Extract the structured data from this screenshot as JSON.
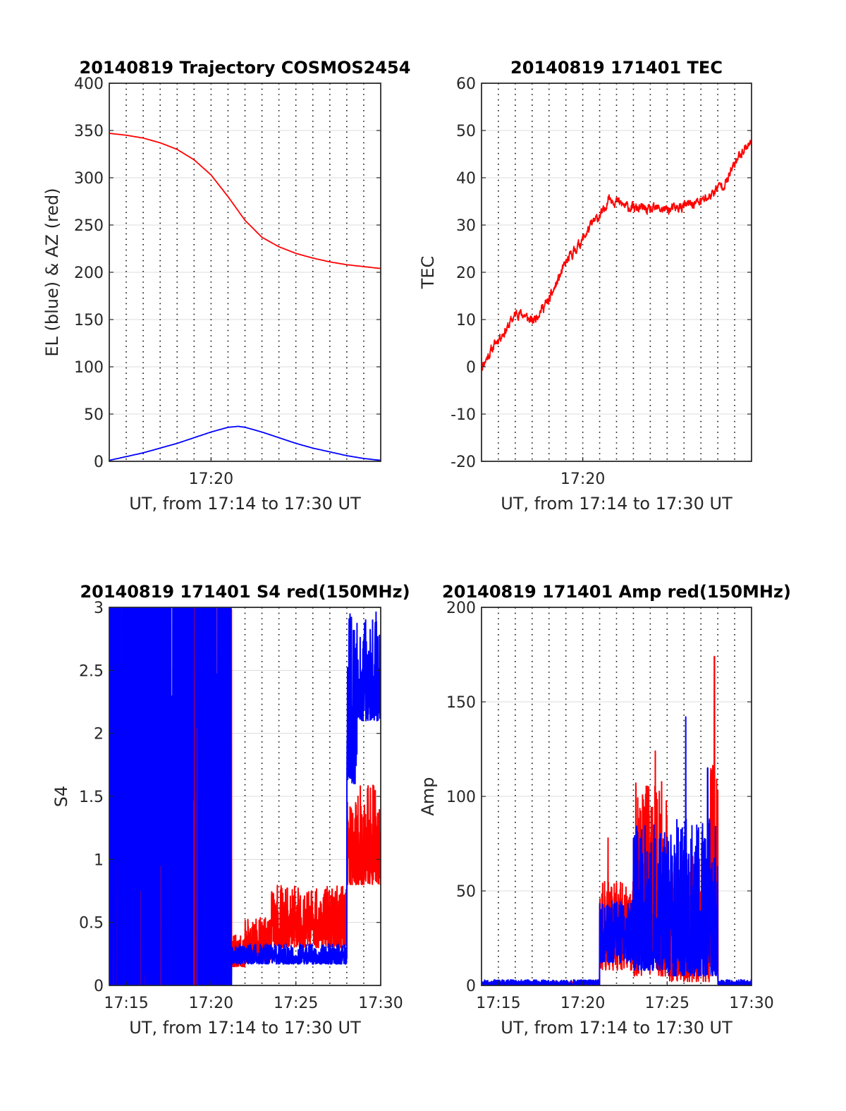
{
  "colors": {
    "red": "#ff0000",
    "blue": "#0000ff",
    "grid": "#dcdcdc",
    "axis": "#262626"
  },
  "chart_data": [
    {
      "type": "line",
      "title": "20140819 Trajectory COSMOS2454",
      "xlabel": "UT, from 17:14 to 17:30 UT",
      "ylabel": "EL (blue) & AZ (red)",
      "xlim": [
        14.0,
        30.0
      ],
      "ylim": [
        0,
        400
      ],
      "yticks": [
        0,
        50,
        100,
        150,
        200,
        250,
        300,
        350,
        400
      ],
      "xticks": [
        {
          "v": 20,
          "label": "17:20"
        }
      ],
      "x_minor_grid": [
        15,
        16,
        17,
        18,
        19,
        20,
        21,
        22,
        23,
        24,
        25,
        26,
        27,
        28,
        29
      ],
      "grid": true,
      "series": [
        {
          "color": "blue",
          "style": "smooth",
          "x": [
            14.0,
            15.0,
            16.0,
            17.0,
            18.0,
            19.0,
            20.0,
            21.0,
            21.6,
            22.0,
            23.0,
            24.0,
            25.0,
            26.0,
            27.0,
            28.0,
            29.0,
            30.0
          ],
          "values": [
            1,
            5,
            9,
            14,
            19,
            25,
            31,
            36,
            37,
            36,
            31,
            25,
            19,
            14,
            10,
            6,
            3,
            1
          ]
        },
        {
          "color": "red",
          "style": "smooth",
          "x": [
            14.0,
            15.0,
            16.0,
            17.0,
            18.0,
            19.0,
            20.0,
            21.0,
            22.0,
            23.0,
            24.0,
            25.0,
            26.0,
            27.0,
            28.0,
            29.0,
            30.0
          ],
          "values": [
            347,
            345,
            342,
            337,
            330,
            319,
            303,
            280,
            255,
            237,
            227,
            220,
            215,
            211,
            208,
            206,
            204
          ]
        }
      ]
    },
    {
      "type": "line",
      "title": "20140819 171401 TEC",
      "xlabel": "UT, from 17:14 to 17:30 UT",
      "ylabel": "TEC",
      "xlim": [
        14.0,
        30.0
      ],
      "ylim": [
        -20,
        60
      ],
      "yticks": [
        -20,
        -10,
        0,
        10,
        20,
        30,
        40,
        50,
        60
      ],
      "xticks": [
        {
          "v": 20,
          "label": "17:20"
        }
      ],
      "x_minor_grid": [
        15,
        16,
        17,
        18,
        19,
        20,
        21,
        22,
        23,
        24,
        25,
        26,
        27,
        28,
        29
      ],
      "grid": true,
      "series": [
        {
          "color": "red",
          "style": "noisy",
          "noise": 0.8,
          "seed": 11,
          "x": [
            14.0,
            14.5,
            15.0,
            15.5,
            15.8,
            16.1,
            16.5,
            17.0,
            17.5,
            18.0,
            18.5,
            19.0,
            19.5,
            20.0,
            20.5,
            21.0,
            21.3,
            21.5,
            22.0,
            22.5,
            23.0,
            23.5,
            24.0,
            24.5,
            25.0,
            25.5,
            26.0,
            26.5,
            27.0,
            27.5,
            28.0,
            28.5,
            29.0,
            29.5,
            30.0
          ],
          "values": [
            0,
            3,
            6,
            8,
            10,
            11.5,
            11,
            9.5,
            12,
            14,
            18,
            22,
            24.5,
            27,
            30,
            32,
            33,
            36,
            35,
            34,
            33.5,
            33.5,
            33,
            33.5,
            33.2,
            33.5,
            34,
            34.5,
            35,
            36,
            38,
            39,
            43,
            46,
            47.5
          ]
        }
      ]
    },
    {
      "type": "line",
      "title": "20140819 171401 S4 red(150MHz)",
      "xlabel": "UT, from 17:14 to 17:30 UT",
      "ylabel": "S4",
      "xlim": [
        14.0,
        30.0
      ],
      "ylim": [
        0,
        3
      ],
      "yticks": [
        0,
        0.5,
        1,
        1.5,
        2,
        2.5,
        3
      ],
      "xticks": [
        {
          "v": 15,
          "label": "17:15"
        },
        {
          "v": 20,
          "label": "17:20"
        },
        {
          "v": 25,
          "label": "17:25"
        },
        {
          "v": 30,
          "label": "17:30"
        }
      ],
      "x_minor_grid": [
        15,
        16,
        17,
        18,
        19,
        20,
        21,
        22,
        23,
        24,
        25,
        26,
        27,
        28,
        29
      ],
      "grid": true,
      "series": [
        {
          "color": "red",
          "style": "spiky",
          "seed": 23,
          "segments": [
            {
              "x0": 14.0,
              "x1": 17.6,
              "mode": "sat",
              "lo": 0.0,
              "hi": 3.0
            },
            {
              "x0": 17.6,
              "x1": 18.6,
              "mode": "band",
              "lo": 0.7,
              "hi": 1.8
            },
            {
              "x0": 18.6,
              "x1": 21.2,
              "mode": "sat",
              "lo": 0.0,
              "hi": 3.0
            },
            {
              "x0": 21.2,
              "x1": 22.0,
              "mode": "band",
              "lo": 0.15,
              "hi": 0.4
            },
            {
              "x0": 22.0,
              "x1": 23.5,
              "mode": "band",
              "lo": 0.18,
              "hi": 0.55
            },
            {
              "x0": 23.5,
              "x1": 28.0,
              "mode": "band",
              "lo": 0.3,
              "hi": 0.8
            },
            {
              "x0": 28.0,
              "x1": 30.0,
              "mode": "band",
              "lo": 0.8,
              "hi": 1.6
            }
          ]
        },
        {
          "color": "blue",
          "style": "spiky",
          "seed": 37,
          "segments": [
            {
              "x0": 14.0,
              "x1": 21.2,
              "mode": "sat",
              "lo": 0.0,
              "hi": 3.0
            },
            {
              "x0": 21.2,
              "x1": 28.0,
              "mode": "band",
              "lo": 0.17,
              "hi": 0.33
            },
            {
              "x0": 28.0,
              "x1": 28.6,
              "mode": "band",
              "lo": 1.6,
              "hi": 3.0
            },
            {
              "x0": 28.6,
              "x1": 30.0,
              "mode": "band",
              "lo": 2.1,
              "hi": 3.0
            }
          ]
        }
      ]
    },
    {
      "type": "line",
      "title": "20140819 171401 Amp red(150MHz)",
      "xlabel": "UT, from 17:14 to 17:30 UT",
      "ylabel": "Amp",
      "xlim": [
        14.0,
        30.0
      ],
      "ylim": [
        0,
        200
      ],
      "yticks": [
        0,
        50,
        100,
        150,
        200
      ],
      "xticks": [
        {
          "v": 15,
          "label": "17:15"
        },
        {
          "v": 20,
          "label": "17:20"
        },
        {
          "v": 25,
          "label": "17:25"
        },
        {
          "v": 30,
          "label": "17:30"
        }
      ],
      "x_minor_grid": [
        15,
        16,
        17,
        18,
        19,
        20,
        21,
        22,
        23,
        24,
        25,
        26,
        27,
        28,
        29
      ],
      "grid": true,
      "series": [
        {
          "color": "red",
          "style": "spiky",
          "seed": 51,
          "segments": [
            {
              "x0": 14.0,
              "x1": 21.0,
              "mode": "band",
              "lo": 0,
              "hi": 2
            },
            {
              "x0": 21.0,
              "x1": 23.0,
              "mode": "band",
              "lo": 8,
              "hi": 55
            },
            {
              "x0": 23.0,
              "x1": 25.0,
              "mode": "band",
              "lo": 5,
              "hi": 110
            },
            {
              "x0": 25.0,
              "x1": 27.5,
              "mode": "band",
              "lo": 2,
              "hi": 70
            },
            {
              "x0": 27.5,
              "x1": 28.0,
              "mode": "band",
              "lo": 5,
              "hi": 120
            },
            {
              "x0": 28.0,
              "x1": 30.0,
              "mode": "band",
              "lo": 0,
              "hi": 2
            }
          ],
          "peaks": [
            {
              "x": 21.5,
              "v": 78
            },
            {
              "x": 24.3,
              "v": 124
            },
            {
              "x": 27.8,
              "v": 174
            }
          ]
        },
        {
          "color": "blue",
          "style": "spiky",
          "seed": 67,
          "segments": [
            {
              "x0": 14.0,
              "x1": 21.0,
              "mode": "band",
              "lo": 0,
              "hi": 3
            },
            {
              "x0": 21.0,
              "x1": 23.0,
              "mode": "band",
              "lo": 12,
              "hi": 45
            },
            {
              "x0": 23.0,
              "x1": 25.0,
              "mode": "band",
              "lo": 8,
              "hi": 85
            },
            {
              "x0": 25.0,
              "x1": 28.0,
              "mode": "band",
              "lo": 5,
              "hi": 90
            },
            {
              "x0": 28.0,
              "x1": 30.0,
              "mode": "band",
              "lo": 0,
              "hi": 3
            }
          ],
          "peaks": [
            {
              "x": 26.1,
              "v": 142
            },
            {
              "x": 27.4,
              "v": 115
            }
          ]
        }
      ]
    }
  ]
}
